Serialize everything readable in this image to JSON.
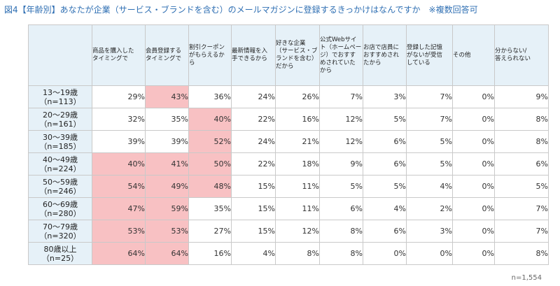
{
  "title": "図4【年齢別】あなたが企業（サービス・ブランドを含む）のメールマガジンに登録するきっかけはなんですか　※複数回答可",
  "note": "n=1,554",
  "colors": {
    "header_bg": "#e6f1f8",
    "highlight": "#f8c1c3",
    "title": "#2f6fb3"
  },
  "chart_data": {
    "type": "table",
    "columns": [
      [
        "商品を購入した",
        "タイミングで"
      ],
      [
        "会員登録する",
        "タイミングで"
      ],
      [
        "割引クーポン",
        "がもらえるか",
        "ら"
      ],
      [
        "最新情報を入",
        "手できるから"
      ],
      [
        "好きな企業",
        "（サービス・ブ",
        "ランドを含む）",
        "だから"
      ],
      [
        "公式Webサイ",
        "ト（ホームペー",
        "ジ）でおすす",
        "めされていた",
        "から"
      ],
      [
        "お店で店員に",
        "おすすめされ",
        "たから"
      ],
      [
        "登録した記憶",
        "がないが受信",
        "している"
      ],
      [
        "その他"
      ],
      [
        "分からない/",
        "答えられない"
      ]
    ],
    "rows": [
      {
        "label": [
          "13～19歳",
          "（n=113）"
        ],
        "values": [
          "29%",
          "43%",
          "36%",
          "24%",
          "26%",
          "7%",
          "3%",
          "7%",
          "0%",
          "9%"
        ],
        "highlight": [
          false,
          true,
          false,
          false,
          false,
          false,
          false,
          false,
          false,
          false
        ]
      },
      {
        "label": [
          "20～29歳",
          "（n=161）"
        ],
        "values": [
          "32%",
          "35%",
          "40%",
          "22%",
          "16%",
          "12%",
          "5%",
          "7%",
          "0%",
          "8%"
        ],
        "highlight": [
          false,
          false,
          true,
          false,
          false,
          false,
          false,
          false,
          false,
          false
        ]
      },
      {
        "label": [
          "30～39歳",
          "（n=185）"
        ],
        "values": [
          "39%",
          "39%",
          "52%",
          "24%",
          "21%",
          "12%",
          "6%",
          "5%",
          "0%",
          "8%"
        ],
        "highlight": [
          false,
          false,
          true,
          false,
          false,
          false,
          false,
          false,
          false,
          false
        ]
      },
      {
        "label": [
          "40～49歳",
          "（n=224）"
        ],
        "values": [
          "40%",
          "41%",
          "50%",
          "22%",
          "18%",
          "9%",
          "6%",
          "5%",
          "0%",
          "6%"
        ],
        "highlight": [
          true,
          true,
          true,
          false,
          false,
          false,
          false,
          false,
          false,
          false
        ]
      },
      {
        "label": [
          "50～59歳",
          "（n=246）"
        ],
        "values": [
          "54%",
          "49%",
          "48%",
          "15%",
          "11%",
          "5%",
          "5%",
          "4%",
          "0%",
          "5%"
        ],
        "highlight": [
          true,
          true,
          true,
          false,
          false,
          false,
          false,
          false,
          false,
          false
        ]
      },
      {
        "label": [
          "60～69歳",
          "（n=280）"
        ],
        "values": [
          "47%",
          "59%",
          "35%",
          "15%",
          "11%",
          "6%",
          "4%",
          "2%",
          "0%",
          "7%"
        ],
        "highlight": [
          true,
          true,
          false,
          false,
          false,
          false,
          false,
          false,
          false,
          false
        ]
      },
      {
        "label": [
          "70～79歳",
          "（n=320）"
        ],
        "values": [
          "53%",
          "53%",
          "27%",
          "15%",
          "12%",
          "8%",
          "6%",
          "3%",
          "0%",
          "7%"
        ],
        "highlight": [
          true,
          true,
          false,
          false,
          false,
          false,
          false,
          false,
          false,
          false
        ]
      },
      {
        "label": [
          "80歳以上",
          "（n=25）"
        ],
        "values": [
          "64%",
          "64%",
          "16%",
          "4%",
          "8%",
          "8%",
          "0%",
          "0%",
          "0%",
          "8%"
        ],
        "highlight": [
          true,
          true,
          false,
          false,
          false,
          false,
          false,
          false,
          false,
          false
        ]
      }
    ]
  }
}
